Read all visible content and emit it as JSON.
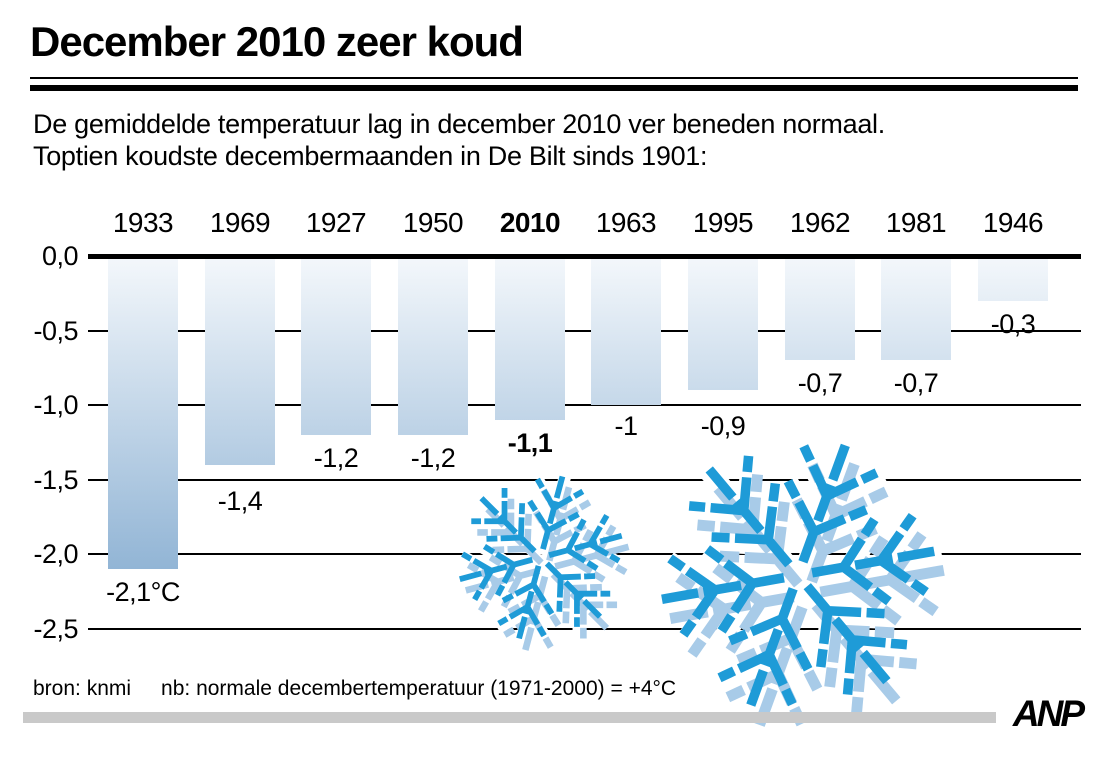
{
  "header": {
    "title": "December 2010 zeer koud",
    "intro_line1": "De gemiddelde temperatuur lag in december 2010 ver beneden normaal.",
    "intro_line2": "Toptien koudste decembermaanden in De Bilt sinds 1901:"
  },
  "chart_data": {
    "type": "bar",
    "title": "Toptien koudste decembermaanden in De Bilt sinds 1901",
    "categories": [
      "1933",
      "1969",
      "1927",
      "1950",
      "2010",
      "1963",
      "1995",
      "1962",
      "1981",
      "1946"
    ],
    "values": [
      -2.1,
      -1.4,
      -1.2,
      -1.2,
      -1.1,
      -1.0,
      -0.9,
      -0.7,
      -0.7,
      -0.3
    ],
    "value_labels": [
      "-2,1°C",
      "-1,4",
      "-1,2",
      "-1,2",
      "-1,1",
      "-1",
      "-0,9",
      "-0,7",
      "-0,7",
      "-0,3"
    ],
    "highlighted_category": "2010",
    "unit": "°C",
    "xlabel": "",
    "ylabel": "",
    "ylim": [
      -2.5,
      0
    ],
    "yticks": [
      0,
      -0.5,
      -1.0,
      -1.5,
      -2.0,
      -2.5
    ],
    "ytick_labels": [
      "0,0",
      "-0,5",
      "-1,0",
      "-1,5",
      "-2,0",
      "-2,5"
    ],
    "grid": "horizontal lines, bars drawn over them",
    "legend": "none",
    "bar_color_top": "#f3f7fb",
    "bar_color_bottom": "#7fa8ce"
  },
  "footer": {
    "source": "bron: knmi",
    "note": "nb: normale decembertemperatuur (1971-2000) = +4°C",
    "agency": "ANP"
  },
  "decorations": {
    "snowflake_blue": "#1e9bd7",
    "snowflake_shadow": "#a8cbe8",
    "snowflake_body": "#ffffff"
  }
}
